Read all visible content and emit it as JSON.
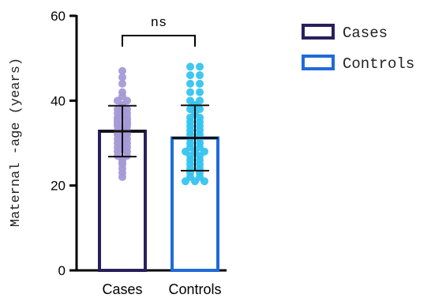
{
  "chart_data": {
    "type": "bar",
    "categories": [
      "Cases",
      "Controls"
    ],
    "ylabel": "Maternal -age (years)",
    "ylim": [
      0,
      60
    ],
    "yticks": [
      0,
      20,
      40,
      60
    ],
    "annotation": "ns",
    "legend_position": "top-right",
    "series": [
      {
        "name": "Cases",
        "mean": 32.8,
        "sd_upper": 38.8,
        "sd_lower": 26.8,
        "edge_color": "#2a1f5c",
        "point_color": "#a59ad6",
        "points": [
          47,
          45.5,
          44,
          42,
          41,
          40,
          40,
          39,
          38.5,
          38,
          38,
          37.5,
          37,
          37,
          36.5,
          36,
          36,
          35.5,
          35.5,
          35,
          35,
          34.5,
          34.5,
          34,
          34,
          33.5,
          33,
          33,
          32.5,
          32.5,
          32,
          32,
          31.5,
          31,
          31,
          30.5,
          30,
          30,
          29.5,
          29,
          29,
          28.5,
          28,
          28,
          27,
          27,
          26,
          25.5,
          25,
          24,
          23,
          22
        ]
      },
      {
        "name": "Controls",
        "mean": 31.2,
        "sd_upper": 38.9,
        "sd_lower": 23.5,
        "edge_color": "#1f6bd9",
        "point_color": "#35c4ef",
        "points": [
          48,
          48,
          46,
          46,
          44,
          44,
          42,
          42,
          40,
          40,
          39,
          38,
          38,
          37,
          36,
          36,
          35,
          35,
          34,
          34,
          33,
          33,
          32,
          32,
          31,
          31,
          30,
          30,
          29,
          29,
          28,
          28,
          28,
          27,
          27,
          26,
          26,
          25,
          25,
          24,
          24,
          23,
          23,
          22,
          22,
          21,
          21,
          21
        ]
      }
    ]
  }
}
